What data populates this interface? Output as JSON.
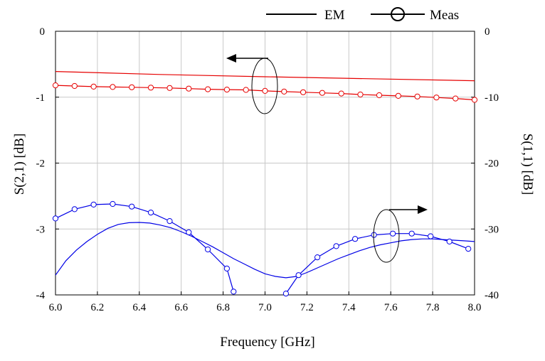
{
  "chart_data": {
    "type": "line",
    "xlabel": "Frequency [GHz]",
    "ylabel_left": "S(2,1) [dB]",
    "ylabel_right": "S(1,1) [dB]",
    "xlim": [
      6.0,
      8.0
    ],
    "ylim_left": [
      -4,
      0
    ],
    "ylim_right": [
      -40,
      0
    ],
    "x_ticks": [
      "6.0",
      "6.2",
      "6.4",
      "6.6",
      "6.8",
      "7.0",
      "7.2",
      "7.4",
      "7.6",
      "7.8",
      "8.0"
    ],
    "y_ticks_left": [
      "0",
      "-1",
      "-2",
      "-3",
      "-4"
    ],
    "y_ticks_right": [
      "0",
      "-10",
      "-20",
      "-30",
      "-40"
    ],
    "grid": true,
    "legend": {
      "position": "top-right",
      "entries": [
        {
          "label": "EM",
          "style": "solid line"
        },
        {
          "label": "Meas",
          "style": "line with circle markers"
        }
      ]
    },
    "colors": {
      "s21": "#e60000",
      "s11": "#0000e6",
      "grid": "#c8c8c8",
      "axis": "#000000"
    },
    "series": [
      {
        "quantity": "S(2,1)",
        "source": "EM",
        "axis": "left",
        "color": "#e60000",
        "markers": false,
        "x": [
          6.0,
          6.5,
          7.0,
          7.5,
          8.0
        ],
        "y": [
          -0.61,
          -0.655,
          -0.69,
          -0.72,
          -0.75
        ]
      },
      {
        "quantity": "S(2,1)",
        "source": "Meas",
        "axis": "left",
        "color": "#e60000",
        "markers": true,
        "x": [
          6.0,
          6.091,
          6.182,
          6.273,
          6.364,
          6.455,
          6.545,
          6.636,
          6.727,
          6.818,
          6.909,
          7.0,
          7.091,
          7.182,
          7.273,
          7.364,
          7.455,
          7.545,
          7.636,
          7.727,
          7.818,
          7.909,
          8.0
        ],
        "y": [
          -0.82,
          -0.83,
          -0.84,
          -0.845,
          -0.85,
          -0.855,
          -0.86,
          -0.87,
          -0.88,
          -0.885,
          -0.89,
          -0.905,
          -0.915,
          -0.925,
          -0.935,
          -0.945,
          -0.96,
          -0.97,
          -0.98,
          -0.99,
          -1.005,
          -1.02,
          -1.04
        ]
      },
      {
        "quantity": "S(1,1)",
        "source": "EM",
        "axis": "right",
        "color": "#0000e6",
        "markers": false,
        "x": [
          6.0,
          6.05,
          6.1,
          6.15,
          6.2,
          6.25,
          6.3,
          6.35,
          6.4,
          6.45,
          6.5,
          6.55,
          6.6,
          6.65,
          6.7,
          6.75,
          6.8,
          6.85,
          6.9,
          6.95,
          7.0,
          7.05,
          7.1,
          7.15,
          7.2,
          7.25,
          7.3,
          7.35,
          7.4,
          7.45,
          7.5,
          7.55,
          7.6,
          7.65,
          7.7,
          7.75,
          7.8,
          7.85,
          7.9,
          7.95,
          8.0
        ],
        "y": [
          -37.0,
          -34.8,
          -33.2,
          -31.9,
          -30.8,
          -29.9,
          -29.3,
          -29.05,
          -29.0,
          -29.1,
          -29.4,
          -29.8,
          -30.4,
          -31.1,
          -31.9,
          -32.7,
          -33.6,
          -34.5,
          -35.3,
          -36.1,
          -36.8,
          -37.2,
          -37.4,
          -37.2,
          -36.6,
          -35.9,
          -35.2,
          -34.5,
          -33.9,
          -33.3,
          -32.8,
          -32.4,
          -32.1,
          -31.8,
          -31.6,
          -31.5,
          -31.5,
          -31.6,
          -31.7,
          -31.8,
          -31.9
        ]
      },
      {
        "quantity": "S(1,1)",
        "source": "Meas",
        "axis": "right",
        "color": "#0000e6",
        "markers": true,
        "x": [
          6.0,
          6.091,
          6.182,
          6.273,
          6.364,
          6.455,
          6.545,
          6.636,
          6.727,
          6.818,
          6.85,
          null,
          7.1,
          7.16,
          7.25,
          7.34,
          7.43,
          7.52,
          7.61,
          7.7,
          7.79,
          7.88,
          7.97
        ],
        "y": [
          -28.4,
          -27.0,
          -26.3,
          -26.2,
          -26.6,
          -27.5,
          -28.8,
          -30.5,
          -33.1,
          -36.0,
          -39.5,
          null,
          -39.8,
          -37.0,
          -34.3,
          -32.6,
          -31.5,
          -30.9,
          -30.7,
          -30.7,
          -31.1,
          -31.9,
          -33.0
        ]
      }
    ]
  }
}
